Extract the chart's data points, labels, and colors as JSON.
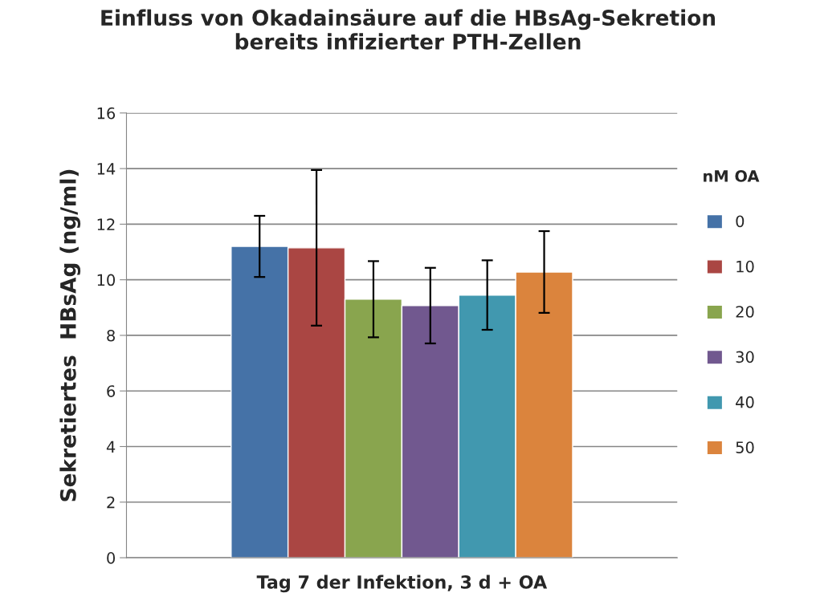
{
  "chart_data": {
    "type": "bar",
    "title": "Einfluss von Okadainsäure auf die HBsAg-Sekretion\nbereits infizierter PTH-Zellen",
    "xlabel": "Tag 7 der Infektion, 3 d + OA",
    "ylabel": "Sekretiertes  HBsAg (ng/ml)",
    "legend_title": "nM OA",
    "categories": [
      null
    ],
    "series": [
      {
        "name": "0",
        "color": "#4572a7",
        "values": [
          11.2
        ],
        "errors": [
          1.1
        ]
      },
      {
        "name": "10",
        "color": "#aa4643",
        "values": [
          11.15
        ],
        "errors": [
          2.8
        ]
      },
      {
        "name": "20",
        "color": "#89a54e",
        "values": [
          9.3
        ],
        "errors": [
          1.37
        ]
      },
      {
        "name": "30",
        "color": "#71588f",
        "values": [
          9.07
        ],
        "errors": [
          1.36
        ]
      },
      {
        "name": "40",
        "color": "#4198af",
        "values": [
          9.45
        ],
        "errors": [
          1.25
        ]
      },
      {
        "name": "50",
        "color": "#db843d",
        "values": [
          10.28
        ],
        "errors": [
          1.47
        ]
      }
    ],
    "ylim": [
      0,
      16
    ],
    "yticks": [
      0,
      2,
      4,
      6,
      8,
      10,
      12,
      14,
      16
    ],
    "grid": "y",
    "legend": "right"
  }
}
